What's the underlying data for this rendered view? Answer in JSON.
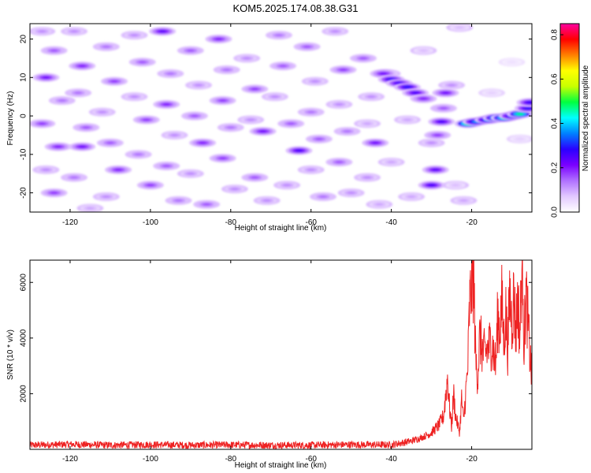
{
  "figure": {
    "title": "KOM5.2025.174.08.38.G31"
  },
  "chart_data": [
    {
      "type": "heatmap",
      "xlabel": "Height of straight line (km)",
      "ylabel": "Frequency (Hz)",
      "xlim": [
        -130,
        -5
      ],
      "ylim": [
        -25,
        24
      ],
      "xticks": [
        -120,
        -100,
        -80,
        -60,
        -40,
        -20
      ],
      "yticks": [
        -20,
        -10,
        0,
        10,
        20
      ],
      "colorbar": {
        "label": "Normalized spectral amplitude",
        "range": [
          0,
          0.85
        ],
        "ticks": [
          0.0,
          0.2,
          0.4,
          0.6,
          0.8
        ],
        "colormap": [
          "#ffffff",
          "#e2c8ff",
          "#b070ff",
          "#7a00ff",
          "#2a00ff",
          "#0080ff",
          "#00ffff",
          "#00ff40",
          "#c8ff00",
          "#ffff00",
          "#ff8000",
          "#ff0000",
          "#ff00a0"
        ]
      },
      "blobs": [
        {
          "x": -127,
          "y": 22,
          "v": 0.12
        },
        {
          "x": -124,
          "y": 17,
          "v": 0.16
        },
        {
          "x": -126,
          "y": 10,
          "v": 0.22
        },
        {
          "x": -122,
          "y": 4,
          "v": 0.14
        },
        {
          "x": -127,
          "y": -2,
          "v": 0.18
        },
        {
          "x": -123,
          "y": -8,
          "v": 0.2
        },
        {
          "x": -126,
          "y": -14,
          "v": 0.12
        },
        {
          "x": -124,
          "y": -20,
          "v": 0.18
        },
        {
          "x": -119,
          "y": 22,
          "v": 0.12
        },
        {
          "x": -117,
          "y": 13,
          "v": 0.2
        },
        {
          "x": -118,
          "y": 6,
          "v": 0.14
        },
        {
          "x": -116,
          "y": -3,
          "v": 0.16
        },
        {
          "x": -117,
          "y": -8,
          "v": 0.22
        },
        {
          "x": -119,
          "y": -16,
          "v": 0.14
        },
        {
          "x": -115,
          "y": -24,
          "v": 0.1
        },
        {
          "x": -111,
          "y": 18,
          "v": 0.14
        },
        {
          "x": -109,
          "y": 9,
          "v": 0.18
        },
        {
          "x": -112,
          "y": 1,
          "v": 0.12
        },
        {
          "x": -110,
          "y": -7,
          "v": 0.16
        },
        {
          "x": -108,
          "y": -14,
          "v": 0.2
        },
        {
          "x": -111,
          "y": -21,
          "v": 0.12
        },
        {
          "x": -104,
          "y": 21,
          "v": 0.12
        },
        {
          "x": -102,
          "y": 14,
          "v": 0.16
        },
        {
          "x": -104,
          "y": 5,
          "v": 0.12
        },
        {
          "x": -101,
          "y": -1,
          "v": 0.18
        },
        {
          "x": -103,
          "y": -10,
          "v": 0.14
        },
        {
          "x": -100,
          "y": -18,
          "v": 0.18
        },
        {
          "x": -97,
          "y": 22,
          "v": 0.24
        },
        {
          "x": -95,
          "y": 11,
          "v": 0.14
        },
        {
          "x": -96,
          "y": 3,
          "v": 0.2
        },
        {
          "x": -94,
          "y": -5,
          "v": 0.12
        },
        {
          "x": -96,
          "y": -13,
          "v": 0.16
        },
        {
          "x": -93,
          "y": -22,
          "v": 0.14
        },
        {
          "x": -90,
          "y": 17,
          "v": 0.16
        },
        {
          "x": -88,
          "y": 8,
          "v": 0.12
        },
        {
          "x": -89,
          "y": 0,
          "v": 0.16
        },
        {
          "x": -87,
          "y": -7,
          "v": 0.2
        },
        {
          "x": -90,
          "y": -15,
          "v": 0.12
        },
        {
          "x": -86,
          "y": -23,
          "v": 0.16
        },
        {
          "x": -83,
          "y": 20,
          "v": 0.2
        },
        {
          "x": -81,
          "y": 12,
          "v": 0.14
        },
        {
          "x": -82,
          "y": 4,
          "v": 0.18
        },
        {
          "x": -80,
          "y": -3,
          "v": 0.14
        },
        {
          "x": -82,
          "y": -11,
          "v": 0.18
        },
        {
          "x": -79,
          "y": -19,
          "v": 0.12
        },
        {
          "x": -76,
          "y": 15,
          "v": 0.12
        },
        {
          "x": -74,
          "y": 7,
          "v": 0.18
        },
        {
          "x": -75,
          "y": -1,
          "v": 0.12
        },
        {
          "x": -72,
          "y": -4,
          "v": 0.22
        },
        {
          "x": -74,
          "y": -16,
          "v": 0.16
        },
        {
          "x": -71,
          "y": -22,
          "v": 0.12
        },
        {
          "x": -68,
          "y": 21,
          "v": 0.14
        },
        {
          "x": -67,
          "y": 13,
          "v": 0.16
        },
        {
          "x": -69,
          "y": 5,
          "v": 0.12
        },
        {
          "x": -65,
          "y": -2,
          "v": 0.16
        },
        {
          "x": -63,
          "y": -9,
          "v": 0.26
        },
        {
          "x": -66,
          "y": -18,
          "v": 0.12
        },
        {
          "x": -61,
          "y": 18,
          "v": 0.16
        },
        {
          "x": -59,
          "y": 9,
          "v": 0.12
        },
        {
          "x": -60,
          "y": 1,
          "v": 0.14
        },
        {
          "x": -58,
          "y": -6,
          "v": 0.16
        },
        {
          "x": -60,
          "y": -14,
          "v": 0.12
        },
        {
          "x": -57,
          "y": -21,
          "v": 0.14
        },
        {
          "x": -54,
          "y": 22,
          "v": 0.12
        },
        {
          "x": -52,
          "y": 12,
          "v": 0.18
        },
        {
          "x": -53,
          "y": 3,
          "v": 0.12
        },
        {
          "x": -51,
          "y": -4,
          "v": 0.14
        },
        {
          "x": -53,
          "y": -12,
          "v": 0.16
        },
        {
          "x": -50,
          "y": -20,
          "v": 0.12
        },
        {
          "x": -47,
          "y": 15,
          "v": 0.16
        },
        {
          "x": -45,
          "y": 5,
          "v": 0.12
        },
        {
          "x": -46,
          "y": -2,
          "v": 0.1
        },
        {
          "x": -44,
          "y": -7,
          "v": 0.22
        },
        {
          "x": -46,
          "y": -16,
          "v": 0.12
        },
        {
          "x": -43,
          "y": -23,
          "v": 0.1
        },
        {
          "x": -41,
          "y": 11,
          "v": 0.1
        },
        {
          "x": -40,
          "y": -12,
          "v": 0.1
        },
        {
          "x": -36,
          "y": -1,
          "v": 0.1
        },
        {
          "x": -35,
          "y": -21,
          "v": 0.1
        },
        {
          "x": -32,
          "y": 17,
          "v": 0.08
        },
        {
          "x": -30,
          "y": -7,
          "v": 0.12
        },
        {
          "x": -24,
          "y": -18,
          "v": 0.08
        },
        {
          "x": -25,
          "y": 8,
          "v": 0.12
        },
        {
          "x": -23,
          "y": 23,
          "v": 0.08
        },
        {
          "x": -22,
          "y": -22,
          "v": 0.1
        },
        {
          "x": -15,
          "y": 6,
          "v": 0.06
        },
        {
          "x": -10,
          "y": 14,
          "v": 0.04
        },
        {
          "x": -8,
          "y": -6,
          "v": 0.06
        },
        {
          "x": -42,
          "y": 11,
          "v": 0.22
        },
        {
          "x": -40,
          "y": 9.5,
          "v": 0.3
        },
        {
          "x": -38,
          "y": 8.5,
          "v": 0.28
        },
        {
          "x": -36,
          "y": 7.5,
          "v": 0.3
        },
        {
          "x": -34,
          "y": 6,
          "v": 0.26
        },
        {
          "x": -32,
          "y": 4.5,
          "v": 0.2
        },
        {
          "x": -27,
          "y": 2,
          "v": 0.16
        },
        {
          "x": -26.5,
          "y": 6,
          "v": 0.22
        },
        {
          "x": -27.5,
          "y": -1.5,
          "v": 0.26
        },
        {
          "x": -28.5,
          "y": -5,
          "v": 0.18
        },
        {
          "x": -29,
          "y": -14,
          "v": 0.24
        },
        {
          "x": -30,
          "y": -18,
          "v": 0.26
        },
        {
          "x": -21,
          "y": -2,
          "v": 0.5
        },
        {
          "x": -19,
          "y": -1.5,
          "v": 0.36
        },
        {
          "x": -16,
          "y": -1,
          "v": 0.38
        },
        {
          "x": -14,
          "y": -0.5,
          "v": 0.42
        },
        {
          "x": -12,
          "y": -0.5,
          "v": 0.46
        },
        {
          "x": -10,
          "y": 0,
          "v": 0.34
        },
        {
          "x": -8,
          "y": 0.5,
          "v": 0.48
        },
        {
          "x": -6,
          "y": 2,
          "v": 0.3
        },
        {
          "x": -5.5,
          "y": 3.5,
          "v": 0.28
        }
      ]
    },
    {
      "type": "line",
      "xlabel": "Height of straight line (km)",
      "ylabel": "SNR (10 * v/v)",
      "xlim": [
        -130,
        -5
      ],
      "ylim": [
        0,
        6800
      ],
      "xticks": [
        -120,
        -100,
        -80,
        -60,
        -40,
        -20
      ],
      "yticks": [
        2000,
        4000,
        6000
      ],
      "series_color": "#ee2222",
      "x": [
        -130,
        -120,
        -110,
        -100,
        -90,
        -80,
        -70,
        -60,
        -50,
        -40,
        -35,
        -32,
        -30,
        -28,
        -27,
        -26,
        -25.5,
        -25,
        -24.5,
        -24,
        -23,
        -22.5,
        -22,
        -21.5,
        -21,
        -20.5,
        -20,
        -19.5,
        -19,
        -18.5,
        -18,
        -17,
        -16,
        -15,
        -14,
        -13.5,
        -13,
        -12.5,
        -12,
        -11.5,
        -11,
        -10.5,
        -10,
        -9.5,
        -9,
        -8.5,
        -8,
        -7.5,
        -7.2,
        -7,
        -6.5,
        -6,
        -5.5,
        -5
      ],
      "y": [
        150,
        180,
        150,
        170,
        150,
        160,
        150,
        150,
        170,
        160,
        300,
        450,
        600,
        900,
        1200,
        2600,
        1500,
        800,
        2000,
        1200,
        600,
        1800,
        1000,
        2000,
        2800,
        5200,
        5900,
        6200,
        3200,
        2600,
        4000,
        3400,
        3600,
        3900,
        3000,
        4800,
        4300,
        5300,
        3900,
        4900,
        3600,
        5700,
        4500,
        5600,
        4200,
        5500,
        4000,
        6600,
        6800,
        3600,
        5600,
        4600,
        3400,
        2600
      ]
    }
  ]
}
